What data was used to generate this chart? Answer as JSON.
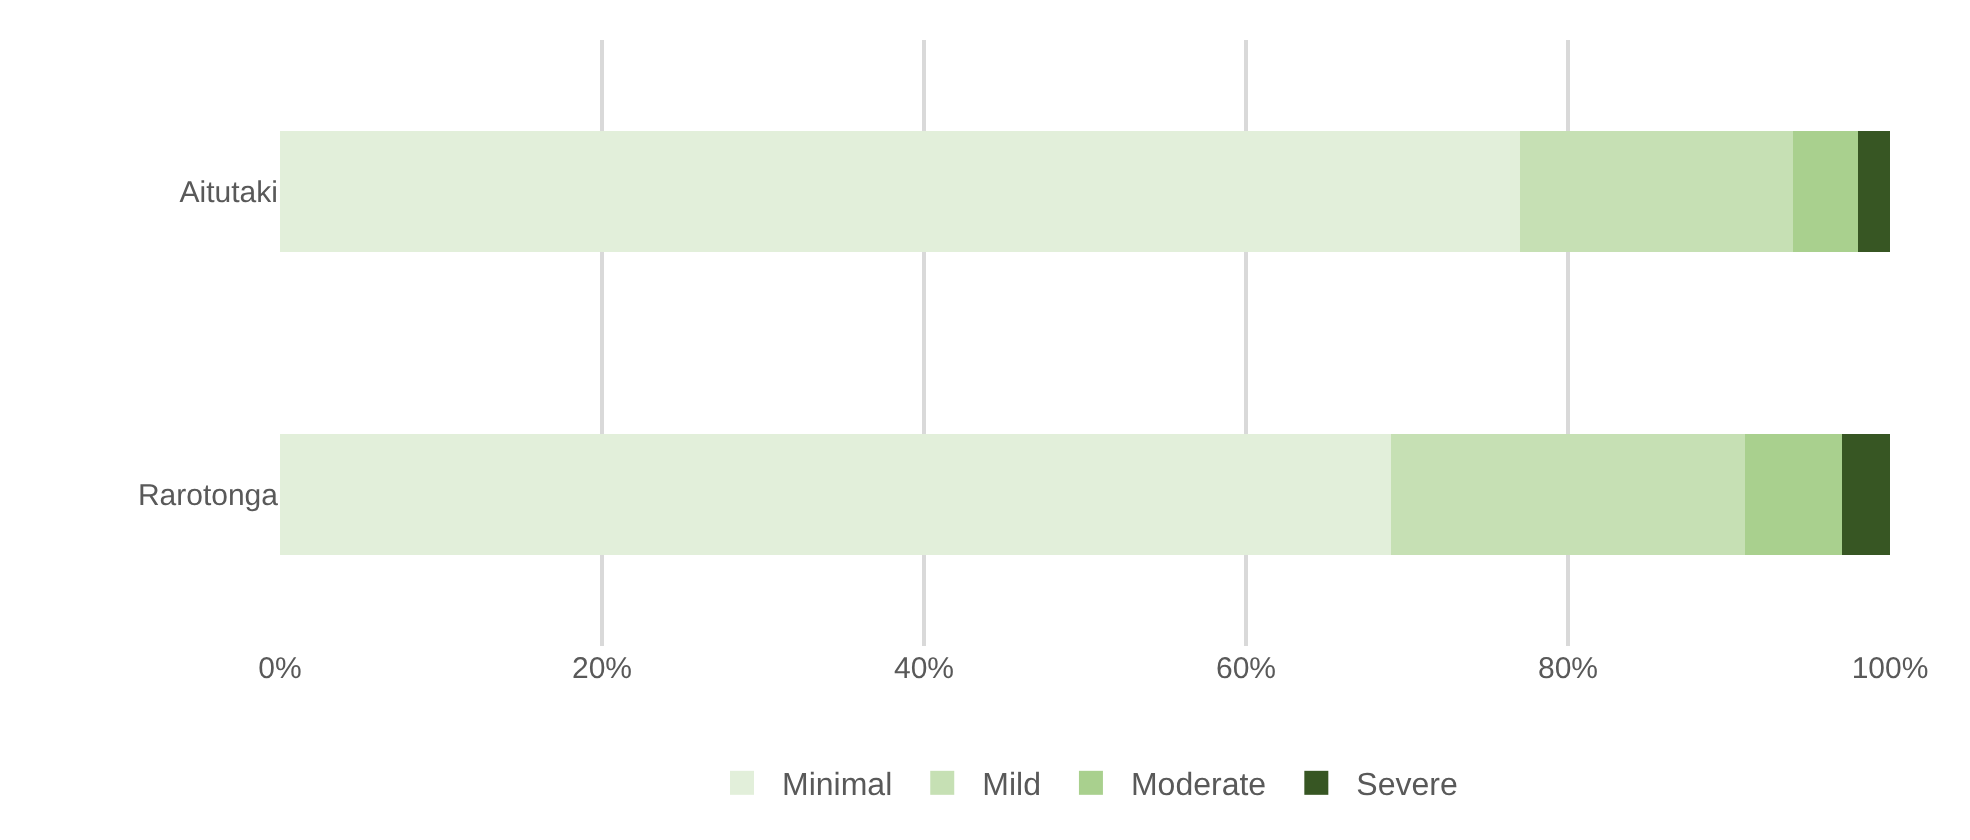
{
  "chart_data": {
    "type": "bar",
    "orientation": "horizontal",
    "stacked": true,
    "categories": [
      "Aitutaki",
      "Rarotonga"
    ],
    "series": [
      {
        "name": "Minimal",
        "color": "#e2efda",
        "values": [
          77,
          69
        ]
      },
      {
        "name": "Mild",
        "color": "#c6e0b4",
        "values": [
          17,
          22
        ]
      },
      {
        "name": "Moderate",
        "color": "#a9d08e",
        "values": [
          4,
          6
        ]
      },
      {
        "name": "Severe",
        "color": "#375623",
        "values": [
          2,
          3
        ]
      }
    ],
    "xlim": [
      0,
      100
    ],
    "xticks": [
      {
        "value": 0,
        "label": "0%"
      },
      {
        "value": 20,
        "label": "20%"
      },
      {
        "value": 40,
        "label": "40%"
      },
      {
        "value": 60,
        "label": "60%"
      },
      {
        "value": 80,
        "label": "80%"
      },
      {
        "value": 100,
        "label": "100%"
      }
    ],
    "grid": "x",
    "legend": "bottom"
  }
}
